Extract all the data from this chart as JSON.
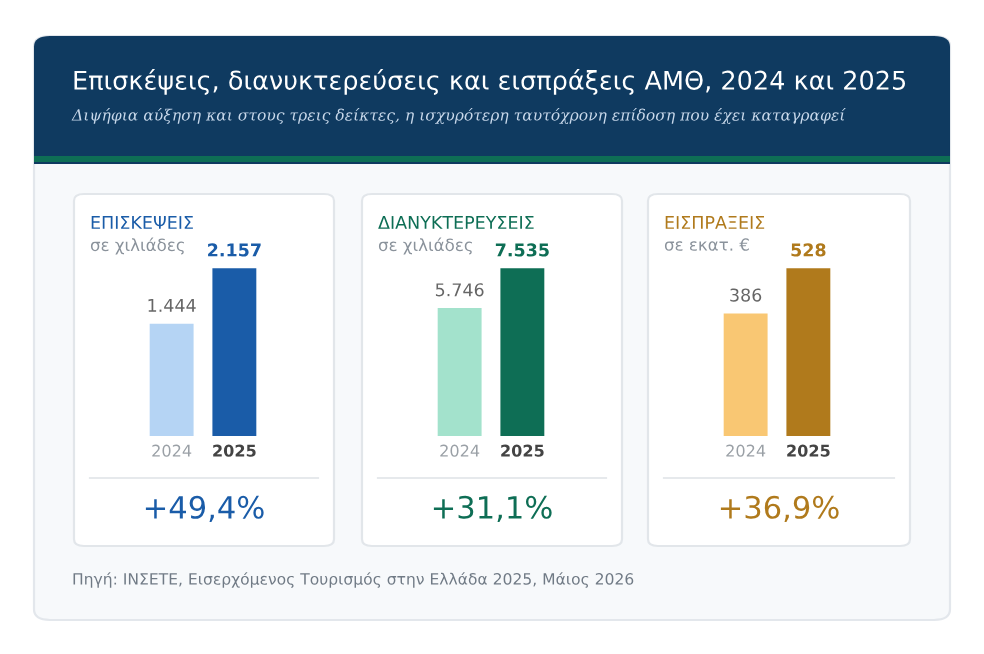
{
  "chart_data": [
    {
      "type": "other",
      "title": "Επισκέψεις, διανυκτερεύσεις και εισπράξεις ΑΜΘ, 2024 και 2025",
      "subtitle": "Διψήφια αύξηση και στους τρεις δείκτες, η ισχυρότερη ταυτόχρονη επίδοση που έχει καταγραφεί",
      "annotations": [
        "Πηγή: ΙΝΣΕΤΕ, Εισερχόμενος Τουρισμός στην Ελλάδα 2025, Μάιος 2026"
      ]
    },
    {
      "type": "bar",
      "title": "ΕΠΙΣΚΕΨΕΙΣ",
      "subtitle": "σε χιλιάδες",
      "categories": [
        "2024",
        "2025"
      ],
      "values": [
        1444,
        2157
      ],
      "colors": [
        "#b5d4f4",
        "#1a5ca8"
      ],
      "value_labels": [
        "1.444",
        "2.157"
      ],
      "annotations": [
        "+49,4%"
      ],
      "tick_labels": "x"
    },
    {
      "type": "bar",
      "title": "ΔΙΑΝΥΚΤΕΡΕΥΣΕΙΣ",
      "subtitle": "σε χιλιάδες",
      "categories": [
        "2024",
        "2025"
      ],
      "values": [
        5746,
        7535
      ],
      "colors": [
        "#a3e2cc",
        "#0e6e55"
      ],
      "value_labels": [
        "5.746",
        "7.535"
      ],
      "annotations": [
        "+31,1%"
      ],
      "tick_labels": "x"
    },
    {
      "type": "bar",
      "title": "ΕΙΣΠΡΑΞΕΙΣ",
      "subtitle": "σε εκατ. €",
      "categories": [
        "2024",
        "2025"
      ],
      "values": [
        386,
        528
      ],
      "colors": [
        "#f9c773",
        "#b07a1c"
      ],
      "value_labels": [
        "386",
        "528"
      ],
      "annotations": [
        "+36,9%"
      ],
      "tick_labels": "x"
    }
  ]
}
